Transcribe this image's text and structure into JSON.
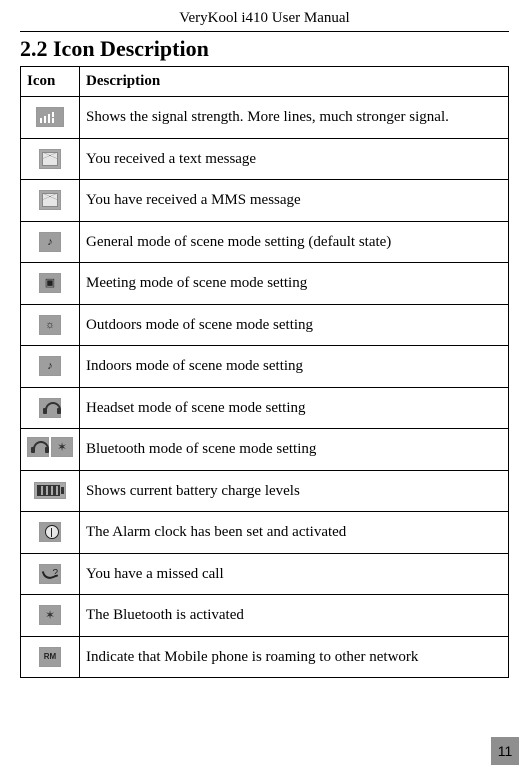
{
  "header": {
    "doc_title": "VeryKool i410 User Manual"
  },
  "section": {
    "title": "2.2 Icon Description"
  },
  "table": {
    "columns": {
      "icon": "Icon",
      "description": "Description"
    },
    "rows": [
      {
        "icon_name": "signal-strength-icon",
        "icon_class": "ico sig",
        "description": "Shows the signal strength. More lines, much stronger signal.",
        "justify": true
      },
      {
        "icon_name": "sms-icon",
        "icon_class": "ico ico-narrow env",
        "description": "You received a text message"
      },
      {
        "icon_name": "mms-icon",
        "icon_class": "ico ico-narrow env",
        "description": "You have received a MMS message"
      },
      {
        "icon_name": "general-mode-icon",
        "icon_class": "ico ico-narrow note",
        "description": "General mode of scene mode setting (default state)"
      },
      {
        "icon_name": "meeting-mode-icon",
        "icon_class": "ico ico-narrow spk",
        "description": "Meeting mode of scene mode setting"
      },
      {
        "icon_name": "outdoors-mode-icon",
        "icon_class": "ico ico-narrow out",
        "description": "Outdoors mode of scene mode setting"
      },
      {
        "icon_name": "indoors-mode-icon",
        "icon_class": "ico ico-narrow note",
        "description": "Indoors mode of scene mode setting"
      },
      {
        "icon_name": "headset-mode-icon",
        "icon_class": "ico ico-narrow head",
        "description": "Headset mode of scene mode setting"
      },
      {
        "icon_name": "bluetooth-mode-icon",
        "icon_class": "ico ico-wide head",
        "extra_icon_name": "bluetooth-glyph-icon",
        "extra_class": "ico ico-narrow bt",
        "combo": true,
        "description": "Bluetooth mode of scene mode setting"
      },
      {
        "icon_name": "battery-icon",
        "icon_class": "ico bat",
        "description": "Shows current battery charge levels"
      },
      {
        "icon_name": "alarm-icon",
        "icon_class": "ico ico-narrow clk",
        "description": "The Alarm clock has been set and activated"
      },
      {
        "icon_name": "missed-call-icon",
        "icon_class": "ico ico-narrow miss",
        "description": "You have a missed call"
      },
      {
        "icon_name": "bluetooth-icon",
        "icon_class": "ico ico-narrow bt",
        "description": "The Bluetooth is activated"
      },
      {
        "icon_name": "roaming-icon",
        "icon_class": "ico ico-narrow roam",
        "description": "Indicate that Mobile phone is roaming to other network"
      }
    ]
  },
  "footer": {
    "page_number": "11",
    "page_bg": "#8f8f8f"
  }
}
